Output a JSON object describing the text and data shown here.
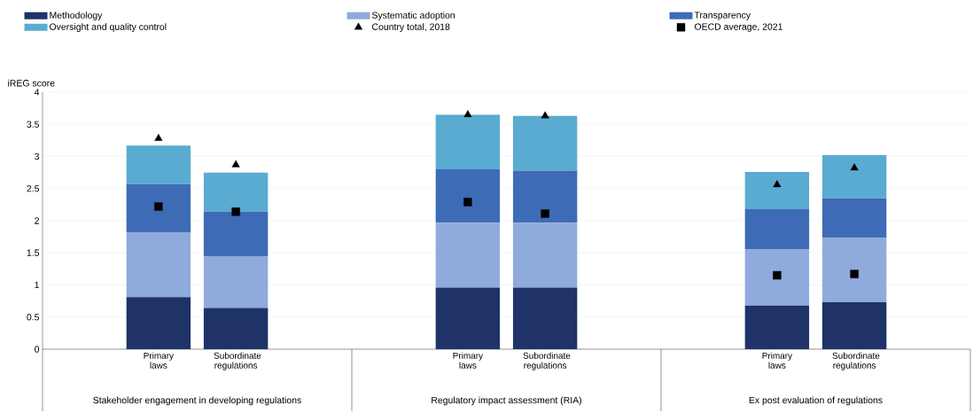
{
  "chart_data": {
    "type": "bar",
    "stacked": true,
    "ylabel": "iREG score",
    "categories": [
      "Primary laws",
      "Subordinate regulations",
      null,
      null,
      "Primary laws",
      "Subordinate regulations",
      null,
      null,
      "Primary laws",
      "Subordinate regulations"
    ],
    "annotations": [
      "Stakeholder engagement in developing regulations",
      "Regulatory impact assessment (RIA)",
      "Ex post evaluation of regulations"
    ],
    "series": [
      {
        "name": "Methodology",
        "color": "#1f3369",
        "values": [
          0.81,
          0.64,
          null,
          null,
          0.96,
          0.96,
          null,
          null,
          0.68,
          0.73
        ]
      },
      {
        "name": "Systematic adoption",
        "color": "#8faadc",
        "values": [
          1.01,
          0.81,
          null,
          null,
          1.01,
          1.01,
          null,
          null,
          0.88,
          1.0
        ]
      },
      {
        "name": "Transparency",
        "color": "#3e6bb5",
        "values": [
          0.75,
          0.69,
          null,
          null,
          0.83,
          0.81,
          null,
          null,
          0.62,
          0.62
        ]
      },
      {
        "name": "Oversight and quality control",
        "color": "#5aabd1",
        "values": [
          0.6,
          0.61,
          null,
          null,
          0.85,
          0.85,
          null,
          null,
          0.58,
          0.67
        ]
      },
      {
        "name": "Country total, 2018",
        "type": "scatter",
        "marker": "triangle",
        "color": "#000000",
        "values": [
          3.28,
          2.87,
          null,
          null,
          3.65,
          3.63,
          null,
          null,
          2.56,
          2.82
        ]
      },
      {
        "name": "OECD average, 2021",
        "type": "scatter",
        "marker": "square",
        "color": "#000000",
        "values": [
          2.22,
          2.14,
          null,
          null,
          2.29,
          2.11,
          null,
          null,
          1.15,
          1.17
        ]
      }
    ],
    "ylim": [
      0,
      4
    ],
    "yticks": [
      0,
      0.5,
      1,
      1.5,
      2,
      2.5,
      3,
      3.5,
      4
    ],
    "grid": "y",
    "legend": "top"
  }
}
